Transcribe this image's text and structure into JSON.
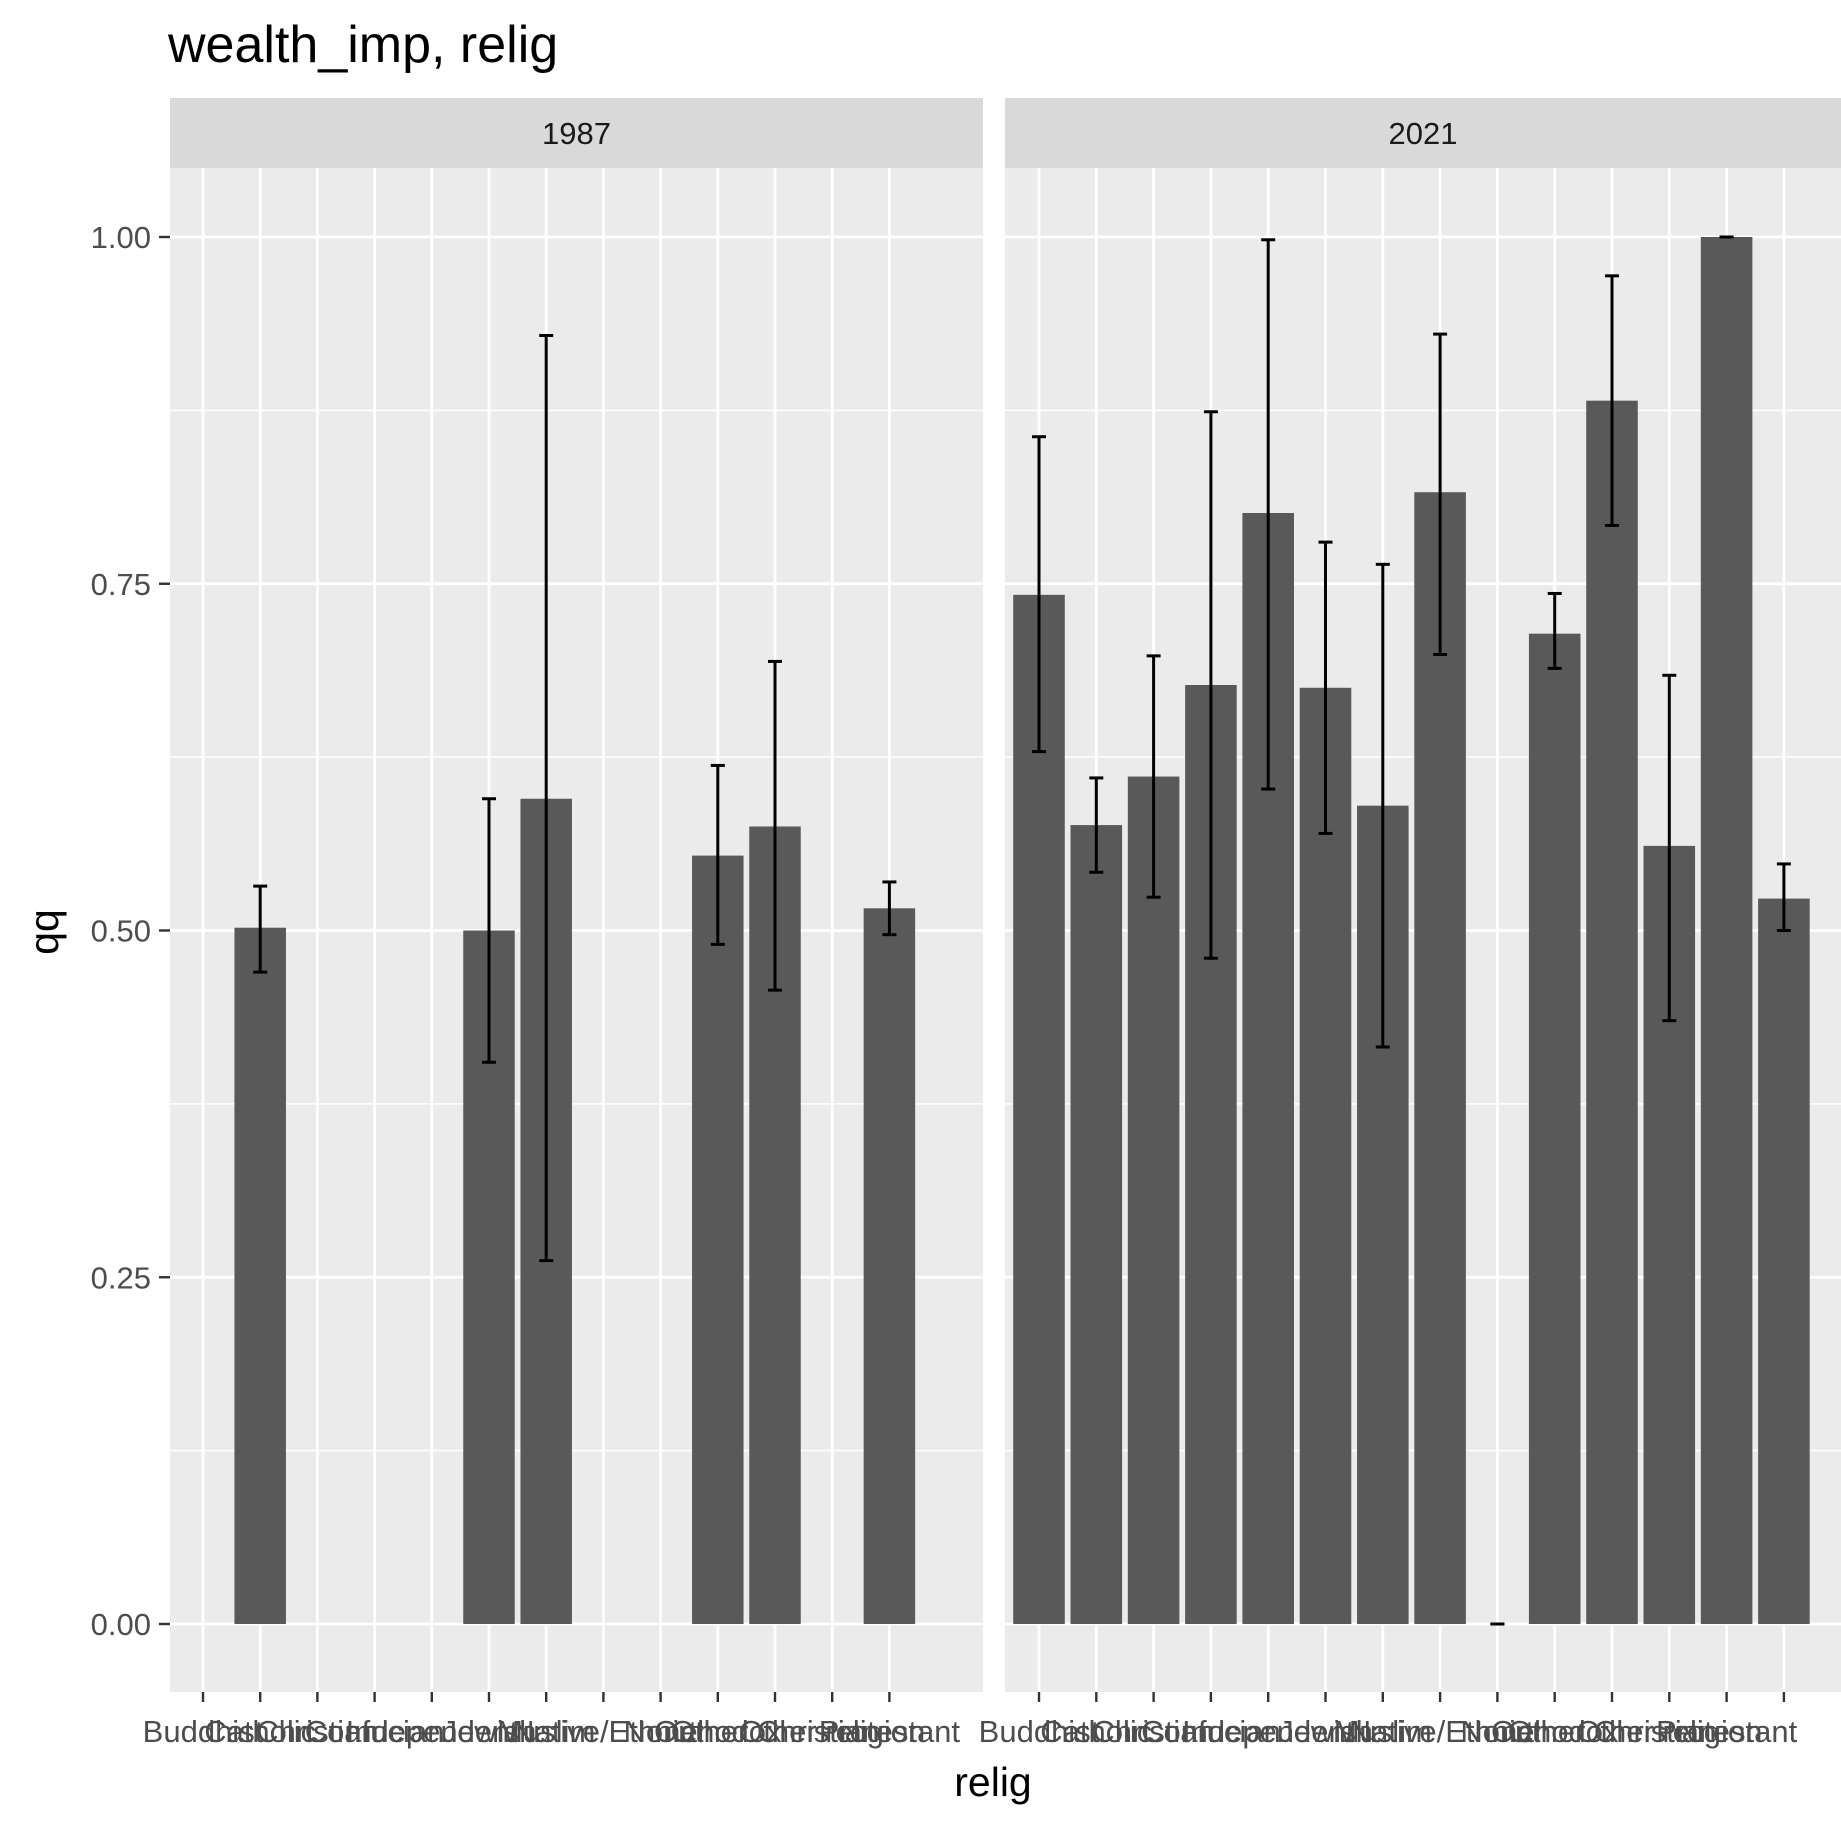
{
  "chart_data": {
    "type": "bar",
    "title": "wealth_imp, relig",
    "xlabel": "relig",
    "ylabel": "qq",
    "ylim": [
      -0.05,
      1.05
    ],
    "yticks": [
      "0.00",
      "0.25",
      "0.50",
      "0.75",
      "1.00"
    ],
    "ytick_values": [
      0,
      0.25,
      0.5,
      0.75,
      1.0
    ],
    "grid": true,
    "colors": {
      "bar": "#595959",
      "panel": "#ebebeb",
      "strip": "#d9d9d9",
      "grid": "#ffffff",
      "errorbar": "#000000"
    },
    "categories": [
      "Buddhist",
      "Catholic",
      "Christian",
      "Confucian",
      "Independent",
      "Jewish",
      "Muslim",
      "Native/Ethnic",
      "None",
      "Orthodox",
      "Other Christian",
      "Other religion",
      "Protestant"
    ],
    "panels": [
      {
        "label": "1987",
        "values": [
          null,
          0.502,
          null,
          null,
          null,
          0.5,
          0.595,
          null,
          null,
          0.554,
          0.575,
          null,
          0.516
        ],
        "lower": [
          null,
          0.47,
          null,
          null,
          null,
          0.405,
          0.262,
          null,
          null,
          0.49,
          0.457,
          null,
          0.497
        ],
        "upper": [
          null,
          0.532,
          null,
          null,
          null,
          0.595,
          0.929,
          null,
          null,
          0.619,
          0.694,
          null,
          0.535
        ]
      },
      {
        "label": "2021",
        "values": [
          0.742,
          0.576,
          0.611,
          0.677,
          0.801,
          0.675,
          0.59,
          0.816,
          0.0,
          0.714,
          0.882,
          0.561,
          1.0
        ],
        "lower": [
          0.629,
          0.542,
          0.524,
          0.48,
          0.602,
          0.57,
          0.416,
          0.699,
          0.0,
          0.689,
          0.792,
          0.435,
          1.0
        ],
        "upper": [
          0.856,
          0.61,
          0.698,
          0.874,
          0.998,
          0.78,
          0.764,
          0.93,
          0.0,
          0.743,
          0.972,
          0.684,
          1.0
        ]
      }
    ],
    "extra_2021": {
      "value": 0.523,
      "lower": 0.5,
      "upper": 0.548
    }
  }
}
